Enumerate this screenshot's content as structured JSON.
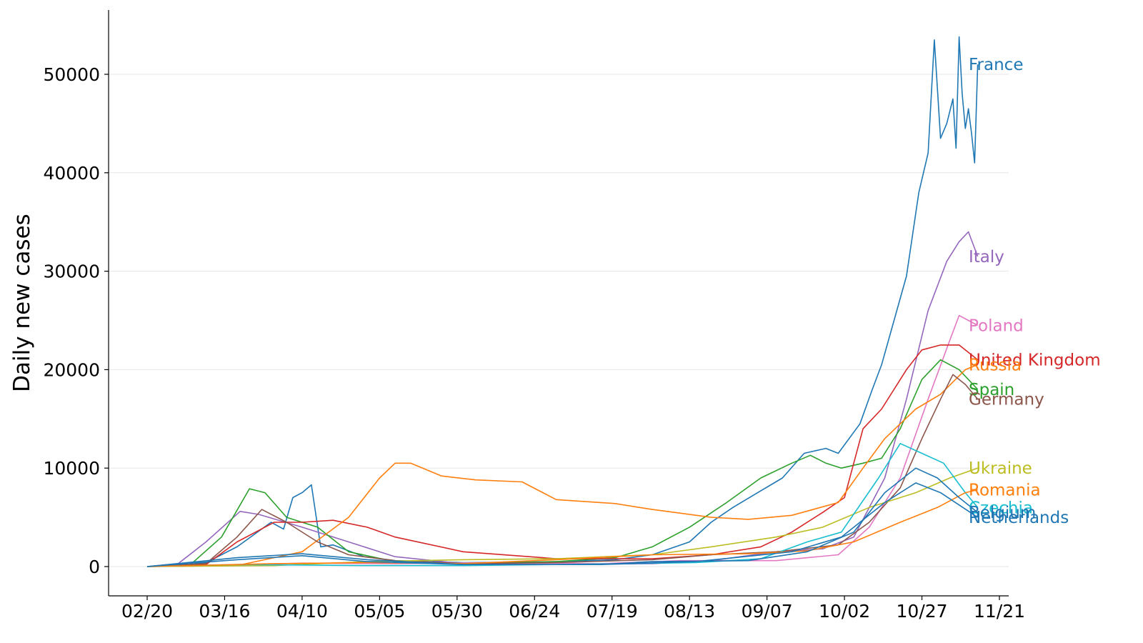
{
  "chart_data": {
    "type": "line",
    "title": "",
    "xlabel": "",
    "ylabel": "Daily new cases",
    "x_tick_labels": [
      "02/20",
      "03/16",
      "04/10",
      "05/05",
      "05/30",
      "06/24",
      "07/19",
      "08/13",
      "09/07",
      "10/02",
      "10/27",
      "11/21"
    ],
    "y_tick_labels": [
      "0",
      "10000",
      "20000",
      "30000",
      "40000",
      "50000"
    ],
    "x_range": [
      "02/20",
      "11/21"
    ],
    "ylim": [
      -2800,
      56500
    ],
    "y_ticks": [
      0,
      10000,
      20000,
      30000,
      40000,
      50000
    ],
    "grid": "horizontal",
    "legend": "none (series labeled at line ends)",
    "series": [
      {
        "name": "France",
        "color": "#1f77b4",
        "points": [
          [
            "02/20",
            0
          ],
          [
            "03/01",
            50
          ],
          [
            "03/10",
            400
          ],
          [
            "03/20",
            2000
          ],
          [
            "03/31",
            4500
          ],
          [
            "04/04",
            3800
          ],
          [
            "04/07",
            7000
          ],
          [
            "04/10",
            7500
          ],
          [
            "04/13",
            8300
          ],
          [
            "04/16",
            2000
          ],
          [
            "04/20",
            2200
          ],
          [
            "04/30",
            1000
          ],
          [
            "05/10",
            600
          ],
          [
            "06/01",
            400
          ],
          [
            "07/01",
            500
          ],
          [
            "07/20",
            700
          ],
          [
            "08/01",
            1200
          ],
          [
            "08/13",
            2500
          ],
          [
            "08/20",
            4500
          ],
          [
            "08/27",
            6000
          ],
          [
            "09/04",
            7500
          ],
          [
            "09/12",
            9000
          ],
          [
            "09/19",
            11500
          ],
          [
            "09/26",
            12000
          ],
          [
            "09/30",
            11500
          ],
          [
            "10/07",
            14500
          ],
          [
            "10/11",
            18000
          ],
          [
            "10/14",
            20500
          ],
          [
            "10/18",
            25000
          ],
          [
            "10/22",
            29500
          ],
          [
            "10/26",
            38000
          ],
          [
            "10/29",
            42000
          ],
          [
            "10/31",
            53500
          ],
          [
            "11/02",
            43500
          ],
          [
            "11/04",
            45000
          ],
          [
            "11/06",
            47500
          ],
          [
            "11/07",
            42500
          ],
          [
            "11/08",
            53800
          ],
          [
            "11/09",
            48000
          ],
          [
            "11/10",
            44500
          ],
          [
            "11/11",
            46500
          ],
          [
            "11/12",
            44000
          ],
          [
            "11/13",
            41000
          ],
          [
            "11/14",
            51000
          ]
        ]
      },
      {
        "name": "Italy",
        "color": "#9467bd",
        "points": [
          [
            "02/20",
            0
          ],
          [
            "03/01",
            300
          ],
          [
            "03/10",
            2500
          ],
          [
            "03/21",
            5600
          ],
          [
            "03/27",
            5300
          ],
          [
            "04/10",
            4000
          ],
          [
            "04/25",
            2500
          ],
          [
            "05/10",
            1000
          ],
          [
            "06/01",
            300
          ],
          [
            "07/01",
            200
          ],
          [
            "08/01",
            300
          ],
          [
            "08/20",
            600
          ],
          [
            "09/10",
            1500
          ],
          [
            "09/25",
            1800
          ],
          [
            "10/05",
            3000
          ],
          [
            "10/15",
            9000
          ],
          [
            "10/22",
            17000
          ],
          [
            "10/29",
            26000
          ],
          [
            "11/04",
            31000
          ],
          [
            "11/08",
            33000
          ],
          [
            "11/11",
            34000
          ],
          [
            "11/14",
            31500
          ]
        ]
      },
      {
        "name": "Poland",
        "color": "#e377c2",
        "points": [
          [
            "02/20",
            0
          ],
          [
            "03/15",
            100
          ],
          [
            "04/10",
            350
          ],
          [
            "05/10",
            300
          ],
          [
            "06/10",
            400
          ],
          [
            "07/15",
            300
          ],
          [
            "08/10",
            600
          ],
          [
            "09/10",
            600
          ],
          [
            "09/30",
            1200
          ],
          [
            "10/10",
            4000
          ],
          [
            "10/20",
            9000
          ],
          [
            "10/29",
            17000
          ],
          [
            "11/05",
            23000
          ],
          [
            "11/08",
            25500
          ],
          [
            "11/11",
            25000
          ],
          [
            "11/14",
            24500
          ]
        ]
      },
      {
        "name": "Spain",
        "color": "#2ca02c",
        "points": [
          [
            "02/20",
            0
          ],
          [
            "03/05",
            200
          ],
          [
            "03/15",
            3000
          ],
          [
            "03/24",
            7900
          ],
          [
            "03/29",
            7500
          ],
          [
            "04/05",
            5000
          ],
          [
            "04/15",
            4000
          ],
          [
            "04/25",
            1500
          ],
          [
            "05/10",
            500
          ],
          [
            "06/01",
            300
          ],
          [
            "07/01",
            500
          ],
          [
            "07/20",
            900
          ],
          [
            "08/01",
            2000
          ],
          [
            "08/13",
            4000
          ],
          [
            "08/25",
            6500
          ],
          [
            "09/05",
            9000
          ],
          [
            "09/15",
            10500
          ],
          [
            "09/21",
            11300
          ],
          [
            "09/26",
            10500
          ],
          [
            "10/01",
            10000
          ],
          [
            "10/08",
            10500
          ],
          [
            "10/14",
            11000
          ],
          [
            "10/20",
            14000
          ],
          [
            "10/27",
            19000
          ],
          [
            "11/02",
            21000
          ],
          [
            "11/08",
            20000
          ],
          [
            "11/14",
            18000
          ]
        ]
      },
      {
        "name": "United Kingdom",
        "color": "#d62728",
        "points": [
          [
            "02/20",
            0
          ],
          [
            "03/10",
            200
          ],
          [
            "03/20",
            2500
          ],
          [
            "04/01",
            4500
          ],
          [
            "04/10",
            4500
          ],
          [
            "04/20",
            4700
          ],
          [
            "05/01",
            4000
          ],
          [
            "05/10",
            3000
          ],
          [
            "06/01",
            1500
          ],
          [
            "07/01",
            800
          ],
          [
            "08/01",
            800
          ],
          [
            "08/20",
            1200
          ],
          [
            "09/05",
            2000
          ],
          [
            "09/15",
            3500
          ],
          [
            "09/25",
            5500
          ],
          [
            "10/02",
            7000
          ],
          [
            "10/08",
            14000
          ],
          [
            "10/14",
            16000
          ],
          [
            "10/22",
            20000
          ],
          [
            "10/27",
            22000
          ],
          [
            "11/02",
            22500
          ],
          [
            "11/08",
            22500
          ],
          [
            "11/14",
            21000
          ]
        ]
      },
      {
        "name": "Russia",
        "color": "#ff7f0e",
        "points": [
          [
            "02/20",
            0
          ],
          [
            "03/20",
            100
          ],
          [
            "04/10",
            1500
          ],
          [
            "04/25",
            5000
          ],
          [
            "05/05",
            9000
          ],
          [
            "05/10",
            10500
          ],
          [
            "05/15",
            10500
          ],
          [
            "05/25",
            9200
          ],
          [
            "06/05",
            8800
          ],
          [
            "06/20",
            8600
          ],
          [
            "07/01",
            6800
          ],
          [
            "07/20",
            6400
          ],
          [
            "08/01",
            5800
          ],
          [
            "08/20",
            5000
          ],
          [
            "09/01",
            4800
          ],
          [
            "09/15",
            5200
          ],
          [
            "09/30",
            6500
          ],
          [
            "10/08",
            10000
          ],
          [
            "10/15",
            13000
          ],
          [
            "10/25",
            16000
          ],
          [
            "11/02",
            17500
          ],
          [
            "11/10",
            20000
          ],
          [
            "11/14",
            20500
          ]
        ]
      },
      {
        "name": "Germany",
        "color": "#8c564b",
        "points": [
          [
            "02/20",
            0
          ],
          [
            "03/10",
            300
          ],
          [
            "03/20",
            3000
          ],
          [
            "03/28",
            5800
          ],
          [
            "04/05",
            4500
          ],
          [
            "04/15",
            2500
          ],
          [
            "04/25",
            1200
          ],
          [
            "05/10",
            600
          ],
          [
            "06/01",
            300
          ],
          [
            "07/01",
            400
          ],
          [
            "08/01",
            700
          ],
          [
            "08/20",
            1200
          ],
          [
            "09/10",
            1500
          ],
          [
            "09/30",
            2200
          ],
          [
            "10/10",
            4500
          ],
          [
            "10/20",
            8000
          ],
          [
            "10/27",
            13000
          ],
          [
            "11/02",
            17000
          ],
          [
            "11/06",
            19500
          ],
          [
            "11/10",
            18500
          ],
          [
            "11/14",
            17000
          ]
        ]
      },
      {
        "name": "Ukraine",
        "color": "#bcbd22",
        "points": [
          [
            "02/20",
            0
          ],
          [
            "04/01",
            100
          ],
          [
            "05/01",
            500
          ],
          [
            "06/01",
            700
          ],
          [
            "07/01",
            800
          ],
          [
            "08/01",
            1200
          ],
          [
            "08/20",
            2000
          ],
          [
            "09/10",
            3000
          ],
          [
            "09/25",
            4000
          ],
          [
            "10/10",
            6000
          ],
          [
            "10/25",
            7500
          ],
          [
            "11/05",
            9000
          ],
          [
            "11/14",
            10000
          ]
        ]
      },
      {
        "name": "Czechia",
        "color": "#17becf",
        "points": [
          [
            "02/20",
            0
          ],
          [
            "03/20",
            200
          ],
          [
            "05/01",
            100
          ],
          [
            "06/01",
            100
          ],
          [
            "07/01",
            200
          ],
          [
            "08/15",
            400
          ],
          [
            "09/05",
            800
          ],
          [
            "09/20",
            2500
          ],
          [
            "10/01",
            3500
          ],
          [
            "10/13",
            9000
          ],
          [
            "10/20",
            12500
          ],
          [
            "10/27",
            11500
          ],
          [
            "11/03",
            10500
          ],
          [
            "11/10",
            7500
          ],
          [
            "11/14",
            6000
          ]
        ]
      },
      {
        "name": "Romania",
        "color": "#ff7f0e",
        "points": [
          [
            "02/20",
            0
          ],
          [
            "04/01",
            300
          ],
          [
            "05/01",
            400
          ],
          [
            "06/01",
            300
          ],
          [
            "07/01",
            700
          ],
          [
            "08/01",
            1200
          ],
          [
            "09/01",
            1300
          ],
          [
            "09/20",
            1600
          ],
          [
            "10/05",
            2500
          ],
          [
            "10/20",
            4500
          ],
          [
            "11/01",
            6000
          ],
          [
            "11/10",
            7500
          ],
          [
            "11/14",
            7800
          ]
        ]
      },
      {
        "name": "Belgium",
        "color": "#1f77b4",
        "points": [
          [
            "02/20",
            0
          ],
          [
            "03/20",
            900
          ],
          [
            "04/10",
            1300
          ],
          [
            "05/01",
            700
          ],
          [
            "06/01",
            200
          ],
          [
            "07/15",
            200
          ],
          [
            "08/01",
            500
          ],
          [
            "09/01",
            600
          ],
          [
            "09/20",
            1500
          ],
          [
            "10/05",
            3500
          ],
          [
            "10/15",
            7500
          ],
          [
            "10/25",
            10000
          ],
          [
            "11/01",
            9000
          ],
          [
            "11/08",
            7000
          ],
          [
            "11/14",
            5500
          ]
        ]
      },
      {
        "name": "Netherlands",
        "color": "#1f77b4",
        "points": [
          [
            "02/20",
            0
          ],
          [
            "03/20",
            700
          ],
          [
            "04/10",
            1100
          ],
          [
            "05/01",
            500
          ],
          [
            "06/01",
            200
          ],
          [
            "07/15",
            200
          ],
          [
            "08/15",
            500
          ],
          [
            "09/15",
            1500
          ],
          [
            "10/01",
            3000
          ],
          [
            "10/15",
            6500
          ],
          [
            "10/25",
            8500
          ],
          [
            "11/02",
            7500
          ],
          [
            "11/14",
            5000
          ]
        ]
      }
    ]
  }
}
